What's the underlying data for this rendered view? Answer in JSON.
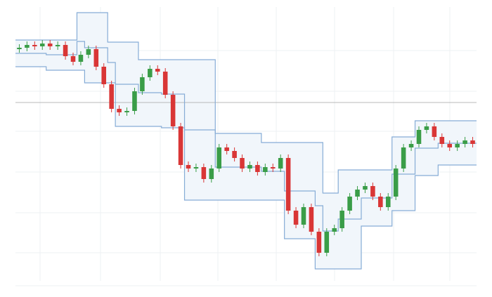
{
  "chart_data": {
    "type": "candlestick",
    "x": [
      0,
      1,
      2,
      3,
      4,
      5,
      6,
      7,
      8,
      9,
      10,
      11,
      12,
      13,
      14,
      15,
      16,
      17,
      18,
      19,
      20,
      21,
      22,
      23,
      24,
      25,
      26,
      27,
      28,
      29,
      30,
      31,
      32,
      33,
      34,
      35,
      36,
      37,
      38,
      39,
      40,
      41,
      42,
      43,
      44,
      45,
      46,
      47,
      48,
      49,
      50,
      51,
      52,
      53,
      54,
      55,
      56,
      57,
      58,
      59
    ],
    "open": [
      330,
      332,
      336,
      334,
      338,
      334,
      336,
      320,
      312,
      322,
      330,
      305,
      280,
      245,
      240,
      242,
      270,
      290,
      302,
      298,
      265,
      220,
      165,
      160,
      162,
      145,
      160,
      190,
      185,
      175,
      160,
      165,
      155,
      162,
      160,
      175,
      100,
      80,
      105,
      70,
      40,
      70,
      75,
      100,
      120,
      130,
      135,
      120,
      105,
      120,
      160,
      190,
      195,
      215,
      220,
      205,
      195,
      190,
      195,
      200
    ],
    "high": [
      337,
      341,
      341,
      343,
      343,
      341,
      341,
      325,
      327,
      335,
      335,
      310,
      285,
      250,
      247,
      275,
      295,
      307,
      307,
      303,
      270,
      225,
      170,
      167,
      167,
      165,
      195,
      195,
      190,
      180,
      170,
      170,
      167,
      167,
      180,
      180,
      105,
      110,
      110,
      75,
      75,
      80,
      105,
      125,
      135,
      140,
      140,
      125,
      125,
      165,
      195,
      200,
      220,
      225,
      225,
      210,
      200,
      200,
      205,
      205
    ],
    "low": [
      325,
      327,
      329,
      329,
      329,
      329,
      315,
      307,
      307,
      317,
      300,
      275,
      240,
      235,
      235,
      237,
      265,
      285,
      293,
      260,
      215,
      160,
      155,
      155,
      140,
      140,
      155,
      180,
      170,
      155,
      155,
      150,
      150,
      155,
      155,
      95,
      75,
      75,
      65,
      35,
      35,
      65,
      70,
      95,
      115,
      125,
      115,
      100,
      100,
      115,
      155,
      185,
      190,
      210,
      200,
      190,
      185,
      185,
      190,
      190
    ],
    "close": [
      332,
      336,
      334,
      338,
      334,
      336,
      320,
      312,
      322,
      330,
      305,
      280,
      245,
      240,
      242,
      270,
      290,
      302,
      298,
      265,
      220,
      165,
      160,
      162,
      145,
      160,
      190,
      185,
      175,
      160,
      165,
      155,
      162,
      160,
      175,
      100,
      80,
      105,
      70,
      40,
      70,
      75,
      100,
      120,
      130,
      135,
      120,
      105,
      120,
      160,
      190,
      195,
      215,
      220,
      205,
      195,
      190,
      195,
      200,
      195
    ],
    "upper": [
      343,
      343,
      343,
      343,
      343,
      343,
      343,
      343,
      382,
      382,
      382,
      382,
      340,
      340,
      340,
      340,
      315,
      315,
      315,
      315,
      315,
      315,
      315,
      315,
      315,
      315,
      210,
      210,
      210,
      210,
      210,
      210,
      197,
      197,
      197,
      197,
      197,
      197,
      197,
      197,
      125,
      125,
      158,
      158,
      158,
      158,
      158,
      158,
      158,
      205,
      205,
      205,
      228,
      228,
      228,
      228,
      228,
      228,
      228,
      228
    ],
    "middle": [
      324,
      324,
      324,
      324,
      322,
      322,
      322,
      322,
      341,
      332,
      332,
      332,
      311,
      280,
      280,
      280,
      268,
      268,
      268,
      266,
      266,
      266,
      215,
      215,
      215,
      215,
      162,
      162,
      162,
      162,
      162,
      162,
      156,
      156,
      156,
      128,
      128,
      128,
      128,
      107,
      71,
      71,
      88,
      88,
      88,
      118,
      118,
      118,
      118,
      152,
      152,
      152,
      189,
      189,
      189,
      196,
      196,
      196,
      196,
      196
    ],
    "lower": [
      305,
      305,
      305,
      305,
      300,
      300,
      300,
      300,
      300,
      282,
      282,
      282,
      282,
      220,
      220,
      220,
      220,
      220,
      220,
      218,
      218,
      218,
      115,
      115,
      115,
      115,
      115,
      115,
      115,
      115,
      115,
      115,
      115,
      115,
      115,
      60,
      60,
      60,
      60,
      17,
      17,
      17,
      17,
      17,
      17,
      78,
      78,
      78,
      78,
      100,
      100,
      100,
      150,
      150,
      150,
      165,
      165,
      165,
      165,
      165
    ],
    "price_line": 254,
    "xlim": [
      -0.5,
      59.5
    ],
    "ylim": [
      0,
      390
    ],
    "up_color": "#3a9d48",
    "down_color": "#d93636",
    "channel_color": "#86acd6",
    "band_color": "#f1f6fb",
    "price_line_color": "#b8b8b8"
  }
}
